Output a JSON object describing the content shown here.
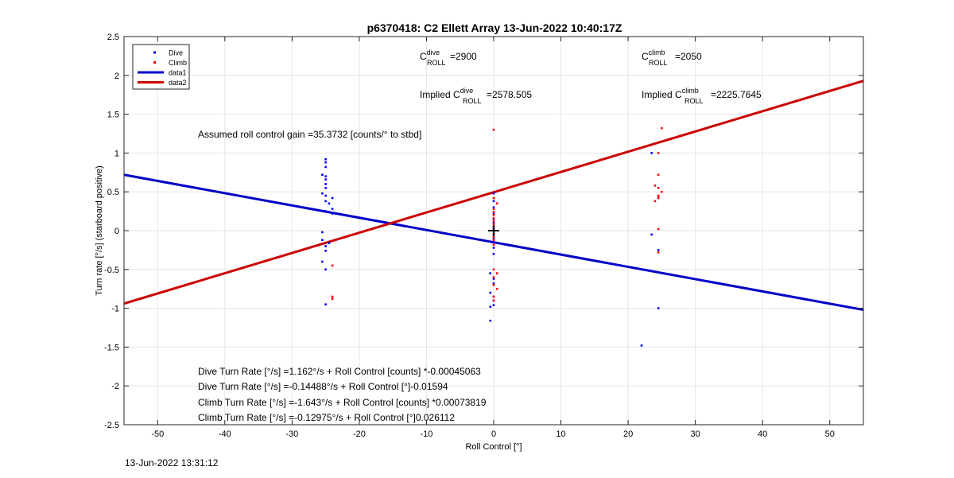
{
  "chart_data": {
    "type": "scatter",
    "title": "p6370418: C2 Ellett Array 13-Jun-2022 10:40:17Z",
    "xlabel": "Roll Control [°]",
    "ylabel": "Turn rate [°/s] (starboard positive)",
    "xlim": [
      -55,
      55
    ],
    "ylim": [
      -2.5,
      2.5
    ],
    "xticks": [
      -50,
      -40,
      -30,
      -20,
      -10,
      0,
      10,
      20,
      30,
      40,
      50
    ],
    "yticks": [
      -2.5,
      -2,
      -1.5,
      -1,
      -0.5,
      0,
      0.5,
      1,
      1.5,
      2,
      2.5
    ],
    "grid": true,
    "legend_placement": "top-left",
    "legend": [
      {
        "label": "Dive",
        "marker": "dot",
        "color": "#0000ff"
      },
      {
        "label": "Climb",
        "marker": "dot",
        "color": "#ff0000"
      },
      {
        "label": "data1",
        "marker": "line",
        "color": "#0000c8"
      },
      {
        "label": "data2",
        "marker": "line",
        "color": "#cc0000"
      }
    ],
    "series": [
      {
        "name": "Dive",
        "kind": "points",
        "color": "#0000ff",
        "points": [
          [
            -25,
            0.92
          ],
          [
            -25,
            0.88
          ],
          [
            -25,
            0.82
          ],
          [
            -25.5,
            0.72
          ],
          [
            -25,
            0.7
          ],
          [
            -25,
            0.66
          ],
          [
            -25,
            0.6
          ],
          [
            -25,
            0.55
          ],
          [
            -25.5,
            0.48
          ],
          [
            -25,
            0.45
          ],
          [
            -25,
            0.38
          ],
          [
            -24,
            0.42
          ],
          [
            -24.5,
            0.35
          ],
          [
            -24,
            0.28
          ],
          [
            -25,
            0.25
          ],
          [
            -24,
            0.22
          ],
          [
            -25.5,
            -0.02
          ],
          [
            -25.5,
            -0.12
          ],
          [
            -24.5,
            -0.16
          ],
          [
            -25,
            -0.2
          ],
          [
            -25,
            -0.26
          ],
          [
            -25.5,
            -0.4
          ],
          [
            -25,
            -0.5
          ],
          [
            -25,
            -0.95
          ],
          [
            0,
            0.48
          ],
          [
            0,
            0.38
          ],
          [
            0,
            0.3
          ],
          [
            0,
            0.22
          ],
          [
            0,
            0.15
          ],
          [
            0,
            0.1
          ],
          [
            0,
            0.05
          ],
          [
            0,
            0.02
          ],
          [
            0,
            -0.05
          ],
          [
            0,
            -0.1
          ],
          [
            0,
            -0.15
          ],
          [
            0,
            -0.22
          ],
          [
            0,
            -0.3
          ],
          [
            -0.5,
            -0.55
          ],
          [
            0,
            -0.62
          ],
          [
            0,
            -0.68
          ],
          [
            -0.5,
            -0.8
          ],
          [
            0,
            -0.85
          ],
          [
            0,
            -0.9
          ],
          [
            -0.5,
            -0.98
          ],
          [
            0,
            -0.96
          ],
          [
            -0.5,
            -1.16
          ],
          [
            23.5,
            1.0
          ],
          [
            24.5,
            0.42
          ],
          [
            23.5,
            -0.05
          ],
          [
            24.5,
            -0.25
          ],
          [
            24.5,
            -1.0
          ],
          [
            22,
            -1.48
          ]
        ]
      },
      {
        "name": "Climb",
        "kind": "points",
        "color": "#ff0000",
        "points": [
          [
            -24,
            -0.45
          ],
          [
            -24,
            -0.85
          ],
          [
            -24,
            -0.88
          ],
          [
            0,
            1.3
          ],
          [
            0,
            0.42
          ],
          [
            0.5,
            0.35
          ],
          [
            0,
            0.28
          ],
          [
            0,
            0.24
          ],
          [
            0,
            0.2
          ],
          [
            0,
            0.16
          ],
          [
            0,
            0.12
          ],
          [
            0,
            0.08
          ],
          [
            0,
            0.04
          ],
          [
            0,
            0.0
          ],
          [
            0,
            -0.04
          ],
          [
            0,
            -0.08
          ],
          [
            0,
            -0.12
          ],
          [
            0,
            -0.18
          ],
          [
            0,
            -0.5
          ],
          [
            0.5,
            -0.55
          ],
          [
            0,
            -0.6
          ],
          [
            0,
            -0.7
          ],
          [
            0.5,
            -0.75
          ],
          [
            0,
            -0.85
          ],
          [
            0,
            -0.9
          ],
          [
            25,
            1.32
          ],
          [
            24.5,
            1.0
          ],
          [
            24.5,
            0.72
          ],
          [
            24,
            0.58
          ],
          [
            24.5,
            0.55
          ],
          [
            25,
            0.5
          ],
          [
            24.5,
            0.45
          ],
          [
            24.5,
            0.42
          ],
          [
            24,
            0.38
          ],
          [
            24.5,
            0.02
          ],
          [
            24.5,
            -0.28
          ]
        ]
      },
      {
        "name": "data1",
        "kind": "line",
        "color": "#0000c8",
        "points": [
          [
            -55,
            0.72
          ],
          [
            55,
            -1.02
          ]
        ]
      },
      {
        "name": "data2",
        "kind": "line",
        "color": "#cc0000",
        "points": [
          [
            -55,
            -0.94
          ],
          [
            55,
            1.93
          ]
        ]
      }
    ],
    "marker": {
      "kind": "plus",
      "x": 0,
      "y": 0,
      "color": "#000000"
    },
    "annotations": {
      "c_dive": {
        "base": "C",
        "sup": "dive",
        "sub": "ROLL",
        "value": "=2900"
      },
      "c_climb": {
        "base": "C",
        "sup": "climb",
        "sub": "ROLL",
        "value": "=2050"
      },
      "implied_dive": {
        "prefix": "Implied ",
        "base": "C",
        "sup": "dive",
        "sub": "ROLL",
        "value": "=2578.505"
      },
      "implied_climb": {
        "prefix": "Implied ",
        "base": "C",
        "sup": "climb",
        "sub": "ROLL",
        "value": "=2225.7645"
      },
      "gain": "Assumed roll control gain =35.3732 [counts/° to stbd]",
      "eq1": "Dive Turn Rate [°/s] =1.162°/s + Roll Control [counts] *-0.00045063",
      "eq2": "Dive Turn Rate [°/s] =-0.14488°/s + Roll Control [°]-0.01594",
      "eq3": "Climb Turn Rate [°/s] =-1.643°/s + Roll Control [counts] *0.00073819",
      "eq4": "Climb Turn Rate [°/s] =-0.12975°/s + Roll Control [°]0.026112"
    }
  },
  "footer": {
    "timestamp": "13-Jun-2022 13:31:12"
  }
}
